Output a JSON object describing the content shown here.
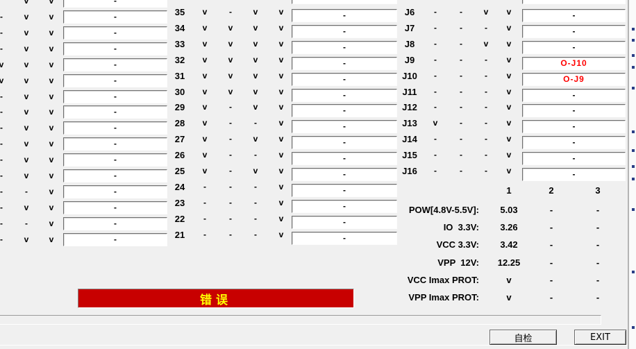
{
  "colors": {
    "background": "#f0f0f0",
    "field_background": "#ffffff",
    "field_border": "#6e6e6e",
    "check_text": "#000000",
    "alert_text": "#ff0000",
    "banner_background": "#c80000",
    "banner_text": "#ffff00"
  },
  "left_panel": {
    "rows": [
      {
        "c1": "",
        "c2": "v",
        "c3": "v",
        "field": "-"
      },
      {
        "c1": "-",
        "c2": "v",
        "c3": "v",
        "field": "-"
      },
      {
        "c1": "-",
        "c2": "v",
        "c3": "v",
        "field": "-"
      },
      {
        "c1": "-",
        "c2": "v",
        "c3": "v",
        "field": "-"
      },
      {
        "c1": "v",
        "c2": "v",
        "c3": "v",
        "field": "-"
      },
      {
        "c1": "v",
        "c2": "v",
        "c3": "v",
        "field": "-"
      },
      {
        "c1": "-",
        "c2": "v",
        "c3": "v",
        "field": "-"
      },
      {
        "c1": "-",
        "c2": "v",
        "c3": "v",
        "field": "-"
      },
      {
        "c1": "-",
        "c2": "v",
        "c3": "v",
        "field": "-"
      },
      {
        "c1": "-",
        "c2": "v",
        "c3": "v",
        "field": "-"
      },
      {
        "c1": "-",
        "c2": "v",
        "c3": "v",
        "field": "-"
      },
      {
        "c1": "-",
        "c2": "v",
        "c3": "v",
        "field": "-"
      },
      {
        "c1": "-",
        "c2": "-",
        "c3": "v",
        "field": "-"
      },
      {
        "c1": "-",
        "c2": "v",
        "c3": "v",
        "field": "-"
      },
      {
        "c1": "-",
        "c2": "-",
        "c3": "v",
        "field": "-"
      },
      {
        "c1": "-",
        "c2": "v",
        "c3": "v",
        "field": "-"
      }
    ]
  },
  "middle_panel": {
    "top_partial_field": "-",
    "rows": [
      {
        "num": "35",
        "c1": "v",
        "c2": "-",
        "c3": "v",
        "c4": "v",
        "field": "-"
      },
      {
        "num": "34",
        "c1": "v",
        "c2": "v",
        "c3": "v",
        "c4": "v",
        "field": "-"
      },
      {
        "num": "33",
        "c1": "v",
        "c2": "v",
        "c3": "v",
        "c4": "v",
        "field": "-"
      },
      {
        "num": "32",
        "c1": "v",
        "c2": "v",
        "c3": "v",
        "c4": "v",
        "field": "-"
      },
      {
        "num": "31",
        "c1": "v",
        "c2": "v",
        "c3": "v",
        "c4": "v",
        "field": "-"
      },
      {
        "num": "30",
        "c1": "v",
        "c2": "v",
        "c3": "v",
        "c4": "v",
        "field": "-"
      },
      {
        "num": "29",
        "c1": "v",
        "c2": "-",
        "c3": "v",
        "c4": "v",
        "field": "-"
      },
      {
        "num": "28",
        "c1": "v",
        "c2": "-",
        "c3": "-",
        "c4": "v",
        "field": "-"
      },
      {
        "num": "27",
        "c1": "v",
        "c2": "-",
        "c3": "v",
        "c4": "v",
        "field": "-"
      },
      {
        "num": "26",
        "c1": "v",
        "c2": "-",
        "c3": "-",
        "c4": "v",
        "field": "-"
      },
      {
        "num": "25",
        "c1": "v",
        "c2": "-",
        "c3": "v",
        "c4": "v",
        "field": "-"
      },
      {
        "num": "24",
        "c1": "-",
        "c2": "-",
        "c3": "-",
        "c4": "v",
        "field": "-"
      },
      {
        "num": "23",
        "c1": "-",
        "c2": "-",
        "c3": "-",
        "c4": "v",
        "field": "-"
      },
      {
        "num": "22",
        "c1": "-",
        "c2": "-",
        "c3": "-",
        "c4": "v",
        "field": "-"
      },
      {
        "num": "21",
        "c1": "-",
        "c2": "-",
        "c3": "-",
        "c4": "v",
        "field": "-"
      }
    ]
  },
  "right_panel": {
    "top_partial_field": "-",
    "rows": [
      {
        "label": "J6",
        "c1": "-",
        "c2": "-",
        "c3": "v",
        "c4": "v",
        "field": "-"
      },
      {
        "label": "J7",
        "c1": "-",
        "c2": "-",
        "c3": "-",
        "c4": "v",
        "field": "-"
      },
      {
        "label": "J8",
        "c1": "-",
        "c2": "-",
        "c3": "v",
        "c4": "v",
        "field": "-"
      },
      {
        "label": "J9",
        "c1": "-",
        "c2": "-",
        "c3": "-",
        "c4": "v",
        "field": "O-J10",
        "alert": true
      },
      {
        "label": "J10",
        "c1": "-",
        "c2": "-",
        "c3": "-",
        "c4": "v",
        "field": "O-J9",
        "alert": true
      },
      {
        "label": "J11",
        "c1": "-",
        "c2": "-",
        "c3": "-",
        "c4": "v",
        "field": "-"
      },
      {
        "label": "J12",
        "c1": "-",
        "c2": "-",
        "c3": "-",
        "c4": "v",
        "field": "-"
      },
      {
        "label": "J13",
        "c1": "v",
        "c2": "-",
        "c3": "-",
        "c4": "v",
        "field": "-"
      },
      {
        "label": "J14",
        "c1": "-",
        "c2": "-",
        "c3": "-",
        "c4": "v",
        "field": "-"
      },
      {
        "label": "J15",
        "c1": "-",
        "c2": "-",
        "c3": "-",
        "c4": "v",
        "field": "-"
      },
      {
        "label": "J16",
        "c1": "-",
        "c2": "-",
        "c3": "-",
        "c4": "v",
        "field": "-"
      }
    ]
  },
  "measurements": {
    "headers": [
      "1",
      "2",
      "3"
    ],
    "rows": [
      {
        "label": "POW[4.8V-5.5V]:",
        "v1": "5.03",
        "v2": "-",
        "v3": "-"
      },
      {
        "label": "IO  3.3V:",
        "v1": "3.26",
        "v2": "-",
        "v3": "-"
      },
      {
        "label": "VCC 3.3V:",
        "v1": "3.42",
        "v2": "-",
        "v3": "-"
      },
      {
        "label": "VPP  12V:",
        "v1": "12.25",
        "v2": "-",
        "v3": "-"
      },
      {
        "label": "VCC Imax PROT:",
        "v1": "v",
        "v2": "-",
        "v3": "-"
      },
      {
        "label": "VPP Imax PROT:",
        "v1": "v",
        "v2": "-",
        "v3": "-"
      }
    ]
  },
  "status_banner": {
    "text": "错误",
    "background": "#c80000",
    "text_color": "#ffff00"
  },
  "buttons": {
    "self_test_label": "自检",
    "exit_label": "EXIT"
  }
}
